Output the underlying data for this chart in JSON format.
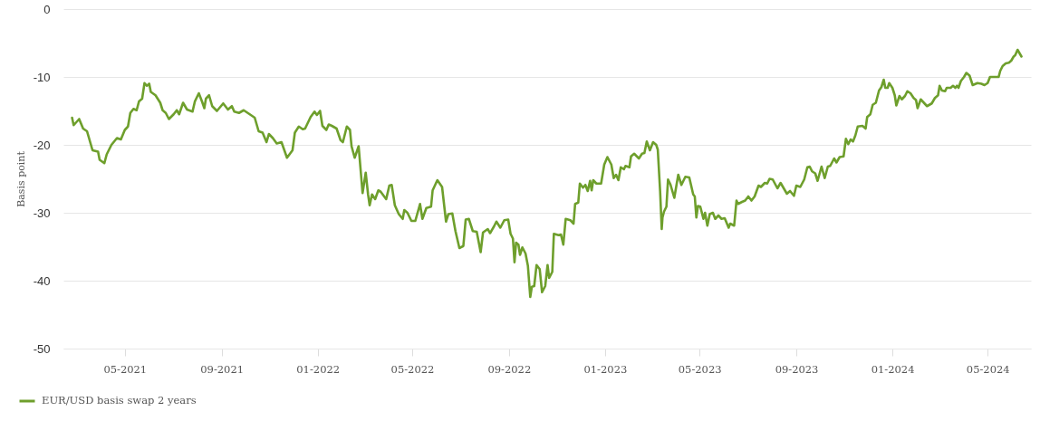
{
  "chart_data": {
    "type": "line",
    "ylabel": "Basis point",
    "x": [
      "2021-02-23",
      "2021-02-25",
      "2021-03-04",
      "2021-03-09",
      "2021-03-14",
      "2021-03-21",
      "2021-03-28",
      "2021-03-30",
      "2021-04-05",
      "2021-04-08",
      "2021-04-14",
      "2021-04-21",
      "2021-04-26",
      "2021-05-01",
      "2021-05-05",
      "2021-05-08",
      "2021-05-12",
      "2021-05-16",
      "2021-05-19",
      "2021-05-23",
      "2021-05-26",
      "2021-05-29",
      "2021-06-01",
      "2021-06-03",
      "2021-06-09",
      "2021-06-15",
      "2021-06-18",
      "2021-06-22",
      "2021-06-26",
      "2021-07-02",
      "2021-07-06",
      "2021-07-09",
      "2021-07-14",
      "2021-07-19",
      "2021-07-26",
      "2021-07-29",
      "2021-08-03",
      "2021-08-07",
      "2021-08-10",
      "2021-08-12",
      "2021-08-16",
      "2021-08-20",
      "2021-08-26",
      "2021-09-03",
      "2021-09-09",
      "2021-09-14",
      "2021-09-17",
      "2021-09-23",
      "2021-09-29",
      "2021-10-08",
      "2021-10-13",
      "2021-10-18",
      "2021-10-23",
      "2021-10-28",
      "2021-10-31",
      "2021-11-05",
      "2021-11-10",
      "2021-11-16",
      "2021-11-23",
      "2021-11-30",
      "2021-12-03",
      "2021-12-08",
      "2021-12-13",
      "2021-12-16",
      "2021-12-23",
      "2021-12-28",
      "2021-12-31",
      "2022-01-04",
      "2022-01-07",
      "2022-01-12",
      "2022-01-15",
      "2022-01-19",
      "2022-01-25",
      "2022-01-30",
      "2022-02-02",
      "2022-02-07",
      "2022-02-11",
      "2022-02-13",
      "2022-02-17",
      "2022-02-22",
      "2022-02-27",
      "2022-03-03",
      "2022-03-06",
      "2022-03-08",
      "2022-03-11",
      "2022-03-15",
      "2022-03-19",
      "2022-03-22",
      "2022-03-29",
      "2022-04-02",
      "2022-04-05",
      "2022-04-09",
      "2022-04-14",
      "2022-04-19",
      "2022-04-21",
      "2022-04-25",
      "2022-04-30",
      "2022-05-05",
      "2022-05-11",
      "2022-05-14",
      "2022-05-19",
      "2022-05-25",
      "2022-05-27",
      "2022-06-02",
      "2022-06-08",
      "2022-06-13",
      "2022-06-16",
      "2022-06-21",
      "2022-06-25",
      "2022-06-30",
      "2022-07-05",
      "2022-07-08",
      "2022-07-12",
      "2022-07-17",
      "2022-07-22",
      "2022-07-27",
      "2022-07-30",
      "2022-08-05",
      "2022-08-08",
      "2022-08-13",
      "2022-08-16",
      "2022-08-21",
      "2022-08-26",
      "2022-08-31",
      "2022-09-03",
      "2022-09-06",
      "2022-09-08",
      "2022-09-10",
      "2022-09-13",
      "2022-09-15",
      "2022-09-18",
      "2022-09-22",
      "2022-09-25",
      "2022-09-28",
      "2022-09-30",
      "2022-10-03",
      "2022-10-06",
      "2022-10-10",
      "2022-10-13",
      "2022-10-17",
      "2022-10-20",
      "2022-10-22",
      "2022-10-26",
      "2022-10-28",
      "2022-11-03",
      "2022-11-06",
      "2022-11-09",
      "2022-11-12",
      "2022-11-18",
      "2022-11-22",
      "2022-11-24",
      "2022-11-28",
      "2022-11-30",
      "2022-12-04",
      "2022-12-07",
      "2022-12-10",
      "2022-12-13",
      "2022-12-15",
      "2022-12-17",
      "2022-12-21",
      "2022-12-27",
      "2022-12-31",
      "2023-01-04",
      "2023-01-09",
      "2023-01-12",
      "2023-01-15",
      "2023-01-18",
      "2023-01-21",
      "2023-01-25",
      "2023-01-27",
      "2023-02-01",
      "2023-02-03",
      "2023-02-07",
      "2023-02-13",
      "2023-02-17",
      "2023-02-20",
      "2023-02-23",
      "2023-02-27",
      "2023-03-03",
      "2023-03-07",
      "2023-03-09",
      "2023-03-12",
      "2023-03-14",
      "2023-03-15",
      "2023-03-17",
      "2023-03-20",
      "2023-03-22",
      "2023-03-25",
      "2023-03-30",
      "2023-04-04",
      "2023-04-08",
      "2023-04-13",
      "2023-04-18",
      "2023-04-23",
      "2023-04-25",
      "2023-04-27",
      "2023-04-29",
      "2023-05-02",
      "2023-05-06",
      "2023-05-08",
      "2023-05-11",
      "2023-05-14",
      "2023-05-18",
      "2023-05-21",
      "2023-05-25",
      "2023-05-29",
      "2023-06-02",
      "2023-06-07",
      "2023-06-09",
      "2023-06-14",
      "2023-06-17",
      "2023-06-19",
      "2023-06-24",
      "2023-06-28",
      "2023-07-02",
      "2023-07-06",
      "2023-07-10",
      "2023-07-15",
      "2023-07-18",
      "2023-07-23",
      "2023-07-26",
      "2023-07-29",
      "2023-08-02",
      "2023-08-08",
      "2023-08-12",
      "2023-08-20",
      "2023-08-24",
      "2023-08-29",
      "2023-09-01",
      "2023-09-06",
      "2023-09-11",
      "2023-09-15",
      "2023-09-18",
      "2023-09-21",
      "2023-09-25",
      "2023-09-28",
      "2023-10-03",
      "2023-10-07",
      "2023-10-11",
      "2023-10-14",
      "2023-10-19",
      "2023-10-22",
      "2023-10-26",
      "2023-10-31",
      "2023-11-03",
      "2023-11-06",
      "2023-11-09",
      "2023-11-12",
      "2023-11-15",
      "2023-11-18",
      "2023-11-24",
      "2023-11-28",
      "2023-11-30",
      "2023-12-04",
      "2023-12-07",
      "2023-12-11",
      "2023-12-15",
      "2023-12-18",
      "2023-12-21",
      "2023-12-23",
      "2023-12-26",
      "2023-12-28",
      "2024-01-01",
      "2024-01-04",
      "2024-01-06",
      "2024-01-10",
      "2024-01-13",
      "2024-01-17",
      "2024-01-20",
      "2024-01-24",
      "2024-01-28",
      "2024-01-31",
      "2024-02-02",
      "2024-02-06",
      "2024-02-10",
      "2024-02-14",
      "2024-02-20",
      "2024-02-24",
      "2024-02-28",
      "2024-03-01",
      "2024-03-04",
      "2024-03-08",
      "2024-03-10",
      "2024-03-15",
      "2024-03-18",
      "2024-03-21",
      "2024-03-23",
      "2024-03-25",
      "2024-03-28",
      "2024-04-01",
      "2024-04-04",
      "2024-04-08",
      "2024-04-12",
      "2024-04-18",
      "2024-04-23",
      "2024-04-27",
      "2024-05-01",
      "2024-05-04",
      "2024-05-11",
      "2024-05-15",
      "2024-05-17",
      "2024-05-20",
      "2024-05-24",
      "2024-05-28",
      "2024-05-31",
      "2024-06-03",
      "2024-06-05",
      "2024-06-08",
      "2024-06-10",
      "2024-06-13"
    ],
    "series": [
      {
        "name": "EUR/USD basis swap 2 years",
        "color": "#6e9f2c",
        "values": [
          -16.0,
          -17.1,
          -16.2,
          -17.6,
          -18.0,
          -20.8,
          -21.0,
          -22.2,
          -22.7,
          -21.4,
          -20.0,
          -19.0,
          -19.2,
          -17.8,
          -17.3,
          -15.3,
          -14.7,
          -14.9,
          -13.6,
          -13.2,
          -10.9,
          -11.3,
          -11.0,
          -12.2,
          -12.7,
          -13.8,
          -14.9,
          -15.3,
          -16.2,
          -15.5,
          -14.9,
          -15.5,
          -13.8,
          -14.8,
          -15.1,
          -13.6,
          -12.4,
          -13.6,
          -14.6,
          -13.2,
          -12.7,
          -14.3,
          -15.0,
          -13.9,
          -14.8,
          -14.3,
          -15.1,
          -15.3,
          -14.9,
          -15.6,
          -16.0,
          -18.0,
          -18.2,
          -19.6,
          -18.4,
          -19.0,
          -19.8,
          -19.6,
          -21.9,
          -20.8,
          -18.2,
          -17.3,
          -17.7,
          -17.6,
          -15.9,
          -15.1,
          -15.6,
          -15.0,
          -17.2,
          -17.8,
          -17.0,
          -17.2,
          -17.6,
          -19.3,
          -19.6,
          -17.3,
          -17.8,
          -20.2,
          -21.9,
          -20.2,
          -27.1,
          -24.1,
          -27.3,
          -28.9,
          -27.3,
          -28.0,
          -26.7,
          -26.9,
          -28.0,
          -26.0,
          -25.9,
          -28.9,
          -30.2,
          -30.9,
          -29.6,
          -30.0,
          -31.2,
          -31.2,
          -28.7,
          -30.9,
          -29.3,
          -29.1,
          -26.7,
          -25.2,
          -26.2,
          -31.3,
          -30.2,
          -30.1,
          -32.7,
          -35.2,
          -34.9,
          -31.0,
          -30.9,
          -32.7,
          -32.8,
          -35.8,
          -32.9,
          -32.4,
          -33.0,
          -32.0,
          -31.3,
          -32.2,
          -31.1,
          -31.0,
          -33.1,
          -33.8,
          -37.3,
          -34.4,
          -34.7,
          -36.2,
          -35.1,
          -36.0,
          -37.8,
          -42.4,
          -40.9,
          -40.8,
          -37.7,
          -38.3,
          -41.7,
          -40.8,
          -37.7,
          -39.6,
          -38.7,
          -33.1,
          -33.3,
          -33.2,
          -34.7,
          -30.9,
          -31.1,
          -31.6,
          -28.7,
          -28.5,
          -25.7,
          -26.3,
          -25.9,
          -26.8,
          -25.3,
          -26.7,
          -25.2,
          -25.7,
          -25.7,
          -22.9,
          -21.8,
          -22.9,
          -24.9,
          -24.4,
          -25.2,
          -23.3,
          -23.6,
          -23.1,
          -23.3,
          -21.7,
          -21.3,
          -22.0,
          -21.3,
          -21.2,
          -19.5,
          -20.8,
          -19.6,
          -20.0,
          -20.7,
          -26.9,
          -32.4,
          -30.7,
          -29.8,
          -29.1,
          -25.1,
          -25.8,
          -27.8,
          -24.4,
          -25.9,
          -24.7,
          -24.8,
          -27.3,
          -27.6,
          -30.7,
          -29.0,
          -29.1,
          -30.9,
          -30.0,
          -31.9,
          -30.2,
          -30.0,
          -30.9,
          -30.4,
          -30.9,
          -30.8,
          -32.2,
          -31.6,
          -31.9,
          -28.2,
          -28.7,
          -28.4,
          -28.2,
          -27.6,
          -28.2,
          -27.6,
          -26.0,
          -26.2,
          -25.6,
          -25.7,
          -25.0,
          -25.1,
          -26.4,
          -25.6,
          -27.2,
          -26.8,
          -27.5,
          -26.0,
          -26.2,
          -25.1,
          -23.3,
          -23.2,
          -23.9,
          -24.2,
          -25.3,
          -23.2,
          -24.9,
          -23.2,
          -23.1,
          -22.0,
          -22.6,
          -21.8,
          -21.7,
          -19.1,
          -19.9,
          -19.2,
          -19.5,
          -18.6,
          -17.3,
          -17.2,
          -17.6,
          -15.9,
          -15.5,
          -14.1,
          -13.8,
          -12.0,
          -11.5,
          -10.4,
          -11.6,
          -11.6,
          -10.9,
          -11.6,
          -12.7,
          -14.2,
          -12.8,
          -13.3,
          -12.8,
          -12.1,
          -12.4,
          -13.1,
          -13.4,
          -14.6,
          -13.3,
          -13.8,
          -14.3,
          -13.9,
          -13.1,
          -12.7,
          -11.3,
          -12.0,
          -12.1,
          -11.6,
          -11.6,
          -11.3,
          -11.6,
          -11.3,
          -11.6,
          -10.6,
          -10.0,
          -9.4,
          -9.8,
          -11.2,
          -10.9,
          -11.0,
          -11.2,
          -10.9,
          -10.0,
          -10.0,
          -10.0,
          -9.1,
          -8.4,
          -8.0,
          -7.9,
          -7.6,
          -7.0,
          -6.8,
          -6.0,
          -6.4,
          -7.0
        ]
      }
    ],
    "xlim": [
      "2021-02-12",
      "2024-06-25"
    ],
    "xticks": [
      {
        "value": "2021-05",
        "label": "05-2021"
      },
      {
        "value": "2021-09",
        "label": "09-2021"
      },
      {
        "value": "2022-01",
        "label": "01-2022"
      },
      {
        "value": "2022-05",
        "label": "05-2022"
      },
      {
        "value": "2022-09",
        "label": "09-2022"
      },
      {
        "value": "2023-01",
        "label": "01-2023"
      },
      {
        "value": "2023-05",
        "label": "05-2023"
      },
      {
        "value": "2023-09",
        "label": "09-2023"
      },
      {
        "value": "2024-01",
        "label": "01-2024"
      },
      {
        "value": "2024-05",
        "label": "05-2024"
      }
    ],
    "ylim": [
      -50,
      0
    ],
    "yticks": [
      -50,
      -40,
      -30,
      -20,
      -10,
      0
    ],
    "grid": "y",
    "legend": "bottom left"
  }
}
